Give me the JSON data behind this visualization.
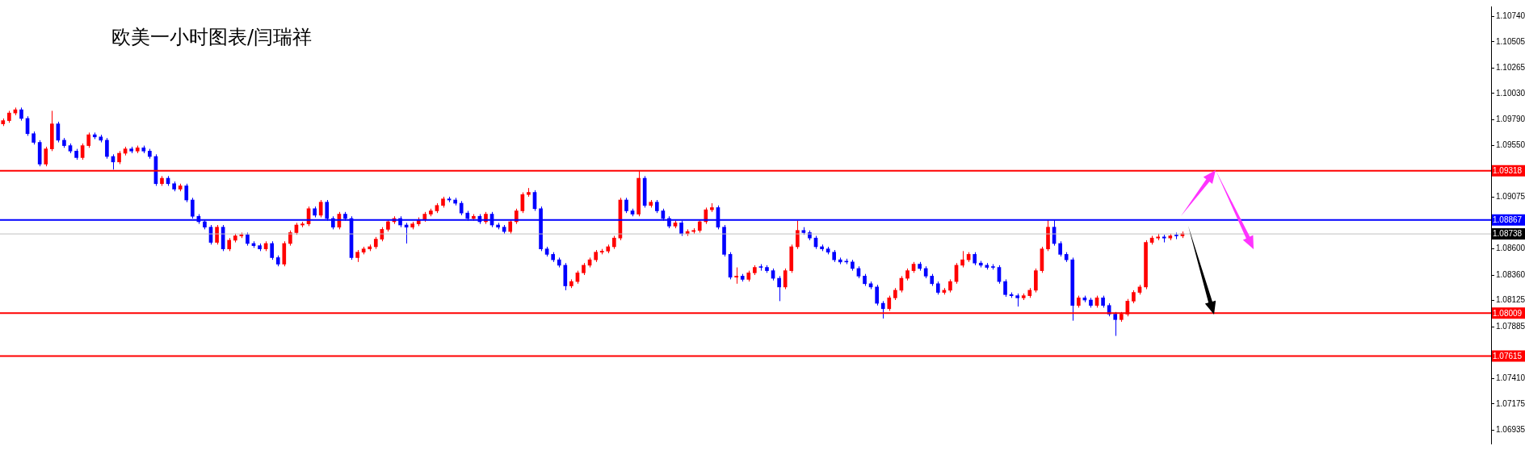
{
  "chart_data": {
    "type": "candlestick",
    "title": "欧美一小时图表/闫瑞祥",
    "categories": [
      null,
      null,
      null,
      null,
      null,
      null,
      null,
      null,
      null,
      null,
      null,
      null,
      null,
      null,
      null,
      null,
      null,
      null,
      null,
      null,
      null,
      null,
      null,
      null,
      null,
      null,
      null,
      null,
      null,
      null,
      null,
      null,
      null,
      null,
      null,
      null,
      null,
      null,
      null,
      null,
      null,
      null,
      null,
      null,
      null,
      null,
      null,
      null,
      null,
      null,
      null,
      null,
      null,
      null,
      null,
      null,
      null,
      null,
      null,
      null,
      null,
      null,
      null,
      null,
      null,
      null,
      null,
      null,
      null,
      null,
      null,
      null,
      null,
      null,
      null,
      null,
      null,
      null,
      null,
      null,
      null,
      null,
      null,
      null,
      null,
      null,
      null,
      null,
      null,
      null,
      null,
      null,
      null,
      null,
      null,
      null,
      null,
      null,
      null,
      null,
      null,
      null,
      null,
      null,
      null,
      null,
      null,
      null,
      null,
      null,
      null,
      null,
      null,
      null,
      null,
      null,
      null,
      null,
      null,
      null,
      null,
      null,
      null,
      null,
      null,
      null,
      null,
      null,
      null,
      null,
      null,
      null,
      null,
      null,
      null,
      null,
      null,
      null,
      null,
      null,
      null,
      null,
      null,
      null,
      null,
      null,
      null,
      null,
      null,
      null,
      null,
      null,
      null,
      null,
      null,
      null,
      null,
      null,
      null,
      null,
      null,
      null,
      null,
      null,
      null,
      null,
      null,
      null,
      null,
      null,
      null,
      null,
      null,
      null,
      null,
      null,
      null,
      null,
      null,
      null,
      null,
      null,
      null,
      null,
      null,
      null,
      null,
      null,
      null,
      null,
      null,
      null,
      null,
      null,
      null,
      null,
      null,
      null,
      null,
      null,
      null,
      null,
      null,
      null,
      null,
      null,
      null,
      null,
      null,
      null,
      null,
      null,
      null,
      null,
      null,
      null,
      null,
      null,
      null,
      null,
      null,
      null,
      null,
      null,
      null,
      null,
      null,
      null,
      null,
      null,
      null,
      null,
      null,
      null,
      null,
      null,
      null,
      null,
      null,
      null,
      null,
      null,
      null,
      null
    ],
    "ohlc": [
      [
        1.0975,
        1.098,
        1.0973,
        1.0978
      ],
      [
        1.0978,
        1.0987,
        1.0976,
        1.0985
      ],
      [
        1.0985,
        1.099,
        1.0983,
        1.0988
      ],
      [
        1.0988,
        1.099,
        1.0978,
        1.098
      ],
      [
        1.098,
        1.0982,
        1.0964,
        1.0966
      ],
      [
        1.0966,
        1.0968,
        1.0956,
        1.0958
      ],
      [
        1.0958,
        1.096,
        1.0936,
        1.0938
      ],
      [
        1.0938,
        1.0954,
        1.0936,
        1.0952
      ],
      [
        1.0952,
        1.0987,
        1.095,
        1.0975
      ],
      [
        1.0975,
        1.0977,
        1.0958,
        1.096
      ],
      [
        1.096,
        1.0962,
        1.0953,
        1.0955
      ],
      [
        1.0955,
        1.0957,
        1.0948,
        1.095
      ],
      [
        1.095,
        1.0952,
        1.0942,
        1.0944
      ],
      [
        1.0944,
        1.0957,
        1.0942,
        1.0955
      ],
      [
        1.0955,
        1.0967,
        1.0953,
        1.0965
      ],
      [
        1.0965,
        1.0967,
        1.0961,
        1.0963
      ],
      [
        1.0963,
        1.0965,
        1.0958,
        1.096
      ],
      [
        1.096,
        1.0962,
        1.0943,
        1.0945
      ],
      [
        1.0945,
        1.0947,
        1.0933,
        1.094
      ],
      [
        1.094,
        1.095,
        1.0938,
        1.0948
      ],
      [
        1.0948,
        1.0954,
        1.0946,
        1.0952
      ],
      [
        1.0952,
        1.0954,
        1.0948,
        1.095
      ],
      [
        1.095,
        1.0955,
        1.0948,
        1.0953
      ],
      [
        1.0953,
        1.0955,
        1.0948,
        1.095
      ],
      [
        1.095,
        1.0952,
        1.0943,
        1.0945
      ],
      [
        1.0945,
        1.0947,
        1.0918,
        1.092
      ],
      [
        1.092,
        1.0927,
        1.0918,
        1.0925
      ],
      [
        1.0925,
        1.0927,
        1.0918,
        1.092
      ],
      [
        1.092,
        1.0922,
        1.0913,
        1.0915
      ],
      [
        1.0915,
        1.092,
        1.0913,
        1.0918
      ],
      [
        1.0918,
        1.092,
        1.0903,
        1.0905
      ],
      [
        1.0905,
        1.0907,
        1.0888,
        1.089
      ],
      [
        1.089,
        1.0892,
        1.0883,
        1.0885
      ],
      [
        1.0885,
        1.0887,
        1.0878,
        1.088
      ],
      [
        1.088,
        1.0882,
        1.0864,
        1.0866
      ],
      [
        1.0866,
        1.0882,
        1.0864,
        1.088
      ],
      [
        1.088,
        1.0882,
        1.0858,
        1.086
      ],
      [
        1.086,
        1.087,
        1.0858,
        1.0868
      ],
      [
        1.0868,
        1.0874,
        1.0866,
        1.0872
      ],
      [
        1.0872,
        1.0875,
        1.087,
        1.0873
      ],
      [
        1.0873,
        1.0875,
        1.0863,
        1.0865
      ],
      [
        1.0865,
        1.0867,
        1.0861,
        1.0863
      ],
      [
        1.0863,
        1.0865,
        1.0858,
        1.086
      ],
      [
        1.086,
        1.0867,
        1.0858,
        1.0865
      ],
      [
        1.0865,
        1.0867,
        1.085,
        1.0852
      ],
      [
        1.0852,
        1.0854,
        1.0844,
        1.0846
      ],
      [
        1.0846,
        1.0867,
        1.0844,
        1.0865
      ],
      [
        1.0865,
        1.0877,
        1.0863,
        1.0875
      ],
      [
        1.0875,
        1.0884,
        1.0873,
        1.0882
      ],
      [
        1.0882,
        1.0885,
        1.088,
        1.0883
      ],
      [
        1.0883,
        1.0899,
        1.0881,
        1.0897
      ],
      [
        1.0897,
        1.0899,
        1.0889,
        1.0891
      ],
      [
        1.0891,
        1.0905,
        1.0889,
        1.0903
      ],
      [
        1.0903,
        1.0905,
        1.0886,
        1.0888
      ],
      [
        1.0888,
        1.089,
        1.0878,
        1.088
      ],
      [
        1.088,
        1.0894,
        1.0878,
        1.0892
      ],
      [
        1.0892,
        1.0894,
        1.0886,
        1.0888
      ],
      [
        1.0888,
        1.089,
        1.085,
        1.0852
      ],
      [
        1.0852,
        1.0859,
        1.0848,
        1.0857
      ],
      [
        1.0857,
        1.0862,
        1.0855,
        1.086
      ],
      [
        1.086,
        1.0864,
        1.0858,
        1.0862
      ],
      [
        1.0862,
        1.0871,
        1.086,
        1.0869
      ],
      [
        1.0869,
        1.088,
        1.0867,
        1.0878
      ],
      [
        1.0878,
        1.0887,
        1.0876,
        1.0885
      ],
      [
        1.0885,
        1.089,
        1.0883,
        1.0888
      ],
      [
        1.0888,
        1.089,
        1.088,
        1.0882
      ],
      [
        1.0882,
        1.0884,
        1.0865,
        1.088
      ],
      [
        1.088,
        1.0885,
        1.0878,
        1.0883
      ],
      [
        1.0883,
        1.0889,
        1.0881,
        1.0887
      ],
      [
        1.0887,
        1.0894,
        1.0885,
        1.0892
      ],
      [
        1.0892,
        1.0897,
        1.089,
        1.0895
      ],
      [
        1.0895,
        1.0902,
        1.0893,
        1.09
      ],
      [
        1.09,
        1.0908,
        1.0898,
        1.0906
      ],
      [
        1.0906,
        1.0908,
        1.0903,
        1.0905
      ],
      [
        1.0905,
        1.0907,
        1.09,
        1.0902
      ],
      [
        1.0902,
        1.0904,
        1.0891,
        1.0893
      ],
      [
        1.0893,
        1.0895,
        1.0886,
        1.0888
      ],
      [
        1.0888,
        1.0892,
        1.0886,
        1.089
      ],
      [
        1.089,
        1.0892,
        1.0883,
        1.0885
      ],
      [
        1.0885,
        1.0894,
        1.0883,
        1.0892
      ],
      [
        1.0892,
        1.0894,
        1.088,
        1.0882
      ],
      [
        1.0882,
        1.0884,
        1.0878,
        1.088
      ],
      [
        1.088,
        1.0882,
        1.0874,
        1.0876
      ],
      [
        1.0876,
        1.0887,
        1.0874,
        1.0885
      ],
      [
        1.0885,
        1.0897,
        1.0883,
        1.0895
      ],
      [
        1.0895,
        1.0912,
        1.0893,
        1.091
      ],
      [
        1.091,
        1.0916,
        1.0908,
        1.0912
      ],
      [
        1.0912,
        1.0914,
        1.0895,
        1.0897
      ],
      [
        1.0897,
        1.0899,
        1.0858,
        1.086
      ],
      [
        1.086,
        1.0862,
        1.0853,
        1.0855
      ],
      [
        1.0855,
        1.0857,
        1.0848,
        1.085
      ],
      [
        1.085,
        1.0852,
        1.0843,
        1.0845
      ],
      [
        1.0845,
        1.0847,
        1.0822,
        1.0826
      ],
      [
        1.0826,
        1.0832,
        1.0824,
        1.083
      ],
      [
        1.083,
        1.084,
        1.0828,
        1.0838
      ],
      [
        1.0838,
        1.0847,
        1.0836,
        1.0845
      ],
      [
        1.0845,
        1.0852,
        1.0843,
        1.085
      ],
      [
        1.085,
        1.0859,
        1.0848,
        1.0857
      ],
      [
        1.0857,
        1.086,
        1.0855,
        1.0858
      ],
      [
        1.0858,
        1.0864,
        1.0856,
        1.0862
      ],
      [
        1.0862,
        1.0872,
        1.086,
        1.087
      ],
      [
        1.087,
        1.0907,
        1.0868,
        1.0905
      ],
      [
        1.0905,
        1.0907,
        1.0893,
        1.0895
      ],
      [
        1.0895,
        1.0897,
        1.089,
        1.0892
      ],
      [
        1.0892,
        1.0932,
        1.089,
        1.0925
      ],
      [
        1.0925,
        1.0927,
        1.0898,
        1.09
      ],
      [
        1.09,
        1.0905,
        1.0898,
        1.0903
      ],
      [
        1.0903,
        1.0905,
        1.0893,
        1.0895
      ],
      [
        1.0895,
        1.0897,
        1.0886,
        1.0888
      ],
      [
        1.0888,
        1.089,
        1.0879,
        1.0881
      ],
      [
        1.0881,
        1.0886,
        1.0879,
        1.0884
      ],
      [
        1.0884,
        1.0886,
        1.0872,
        1.0874
      ],
      [
        1.0874,
        1.0878,
        1.0872,
        1.0876
      ],
      [
        1.0876,
        1.0879,
        1.0874,
        1.0877
      ],
      [
        1.0877,
        1.0887,
        1.0875,
        1.0885
      ],
      [
        1.0885,
        1.0898,
        1.0883,
        1.0896
      ],
      [
        1.0896,
        1.0902,
        1.0894,
        1.0898
      ],
      [
        1.0898,
        1.09,
        1.0878,
        1.088
      ],
      [
        1.088,
        1.0882,
        1.0853,
        1.0855
      ],
      [
        1.0855,
        1.0857,
        1.0832,
        1.0834
      ],
      [
        1.0834,
        1.0843,
        1.0828,
        1.0835
      ],
      [
        1.0835,
        1.0837,
        1.083,
        1.0832
      ],
      [
        1.0832,
        1.084,
        1.083,
        1.0838
      ],
      [
        1.0838,
        1.0845,
        1.0836,
        1.0843
      ],
      [
        1.0843,
        1.0846,
        1.084,
        1.0843
      ],
      [
        1.0843,
        1.0845,
        1.0838,
        1.084
      ],
      [
        1.084,
        1.0842,
        1.0831,
        1.0833
      ],
      [
        1.0833,
        1.0835,
        1.0812,
        1.0825
      ],
      [
        1.0825,
        1.0842,
        1.0823,
        1.084
      ],
      [
        1.084,
        1.0864,
        1.0838,
        1.0862
      ],
      [
        1.0862,
        1.0886,
        1.086,
        1.0877
      ],
      [
        1.0877,
        1.088,
        1.0873,
        1.0875
      ],
      [
        1.0875,
        1.0877,
        1.0868,
        1.087
      ],
      [
        1.087,
        1.0872,
        1.086,
        1.0862
      ],
      [
        1.0862,
        1.0864,
        1.0858,
        1.086
      ],
      [
        1.086,
        1.0862,
        1.0855,
        1.0857
      ],
      [
        1.0857,
        1.0859,
        1.0848,
        1.085
      ],
      [
        1.085,
        1.0852,
        1.0846,
        1.0848
      ],
      [
        1.0848,
        1.0851,
        1.0846,
        1.0848
      ],
      [
        1.0848,
        1.085,
        1.084,
        1.0842
      ],
      [
        1.0842,
        1.0844,
        1.0833,
        1.0835
      ],
      [
        1.0835,
        1.0837,
        1.0826,
        1.0828
      ],
      [
        1.0828,
        1.083,
        1.0823,
        1.0825
      ],
      [
        1.0825,
        1.0827,
        1.0808,
        1.081
      ],
      [
        1.081,
        1.0812,
        1.0796,
        1.0805
      ],
      [
        1.0805,
        1.0817,
        1.0803,
        1.0815
      ],
      [
        1.0815,
        1.0824,
        1.0813,
        1.0822
      ],
      [
        1.0822,
        1.0835,
        1.082,
        1.0833
      ],
      [
        1.0833,
        1.0842,
        1.0831,
        1.084
      ],
      [
        1.084,
        1.0848,
        1.0838,
        1.0846
      ],
      [
        1.0846,
        1.0848,
        1.084,
        1.0842
      ],
      [
        1.0842,
        1.0844,
        1.0833,
        1.0835
      ],
      [
        1.0835,
        1.0837,
        1.0826,
        1.0828
      ],
      [
        1.0828,
        1.083,
        1.0818,
        1.082
      ],
      [
        1.082,
        1.0824,
        1.0818,
        1.0822
      ],
      [
        1.0822,
        1.0832,
        1.082,
        1.083
      ],
      [
        1.083,
        1.0847,
        1.0828,
        1.0845
      ],
      [
        1.0845,
        1.0858,
        1.0843,
        1.085
      ],
      [
        1.085,
        1.0857,
        1.0848,
        1.0855
      ],
      [
        1.0855,
        1.0857,
        1.0845,
        1.0847
      ],
      [
        1.0847,
        1.0849,
        1.0843,
        1.0845
      ],
      [
        1.0845,
        1.0847,
        1.0841,
        1.0843
      ],
      [
        1.0843,
        1.0846,
        1.0841,
        1.0843
      ],
      [
        1.0843,
        1.0845,
        1.0828,
        1.083
      ],
      [
        1.083,
        1.0832,
        1.0816,
        1.0818
      ],
      [
        1.0818,
        1.082,
        1.0815,
        1.0817
      ],
      [
        1.0817,
        1.0819,
        1.0807,
        1.0815
      ],
      [
        1.0815,
        1.0819,
        1.0813,
        1.0817
      ],
      [
        1.0817,
        1.0824,
        1.0815,
        1.0822
      ],
      [
        1.0822,
        1.0842,
        1.082,
        1.084
      ],
      [
        1.084,
        1.0862,
        1.0838,
        1.086
      ],
      [
        1.086,
        1.0887,
        1.0858,
        1.088
      ],
      [
        1.088,
        1.0887,
        1.0863,
        1.0865
      ],
      [
        1.0865,
        1.0867,
        1.0853,
        1.0855
      ],
      [
        1.0855,
        1.0857,
        1.0848,
        1.085
      ],
      [
        1.085,
        1.0852,
        1.0794,
        1.0808
      ],
      [
        1.0808,
        1.0817,
        1.0806,
        1.0815
      ],
      [
        1.0815,
        1.0817,
        1.0811,
        1.0813
      ],
      [
        1.0813,
        1.0815,
        1.0806,
        1.0808
      ],
      [
        1.0808,
        1.0817,
        1.0806,
        1.0815
      ],
      [
        1.0815,
        1.0817,
        1.0806,
        1.0808
      ],
      [
        1.0808,
        1.081,
        1.0798,
        1.08
      ],
      [
        1.08,
        1.0802,
        1.078,
        1.0795
      ],
      [
        1.0795,
        1.0802,
        1.0793,
        1.08
      ],
      [
        1.08,
        1.0814,
        1.0798,
        1.0812
      ],
      [
        1.0812,
        1.0822,
        1.081,
        1.082
      ],
      [
        1.082,
        1.0827,
        1.0818,
        1.0825
      ],
      [
        1.0825,
        1.0868,
        1.0823,
        1.0866
      ],
      [
        1.0866,
        1.0872,
        1.0864,
        1.087
      ],
      [
        1.087,
        1.0874,
        1.0868,
        1.0871
      ],
      [
        1.0871,
        1.0873,
        1.0866,
        1.087
      ],
      [
        1.087,
        1.0874,
        1.0868,
        1.0872
      ],
      [
        1.0872,
        1.0875,
        1.0869,
        1.0872
      ],
      [
        1.0872,
        1.0876,
        1.087,
        1.0874
      ],
      null,
      null,
      null,
      null,
      null,
      null,
      null,
      null,
      null,
      null,
      null,
      null,
      null,
      null,
      null,
      null,
      null,
      null,
      null,
      null,
      null,
      null,
      null,
      null,
      null,
      null,
      null,
      null,
      null,
      null,
      null,
      null,
      null,
      null,
      null,
      null,
      null,
      null,
      null,
      null,
      null,
      null,
      null,
      null,
      null,
      null,
      null,
      null,
      null,
      null
    ],
    "colors": [
      "#ff0000",
      "#ff0000",
      "#ff0000",
      "#0000ff",
      "#0000ff",
      "#0000ff",
      "#0000ff",
      "#ff0000",
      "#ff0000",
      "#0000ff",
      "#0000ff",
      "#0000ff",
      "#0000ff",
      "#ff0000",
      "#ff0000",
      "#0000ff",
      "#0000ff",
      "#0000ff",
      "#0000ff",
      "#ff0000",
      "#ff0000",
      "#0000ff",
      "#ff0000",
      "#0000ff",
      "#0000ff",
      "#0000ff",
      "#ff0000",
      "#0000ff",
      "#0000ff",
      "#ff0000",
      "#0000ff",
      "#0000ff",
      "#0000ff",
      "#0000ff",
      "#0000ff",
      "#ff0000",
      "#0000ff",
      "#ff0000",
      "#ff0000",
      "#ff0000",
      "#0000ff",
      "#0000ff",
      "#0000ff",
      "#ff0000",
      "#0000ff",
      "#0000ff",
      "#ff0000",
      "#ff0000",
      "#ff0000",
      "#ff0000",
      "#ff0000",
      "#0000ff",
      "#ff0000",
      "#0000ff",
      "#0000ff",
      "#ff0000",
      "#0000ff",
      "#0000ff",
      "#ff0000",
      "#ff0000",
      "#ff0000",
      "#ff0000",
      "#ff0000",
      "#ff0000",
      "#ff0000",
      "#0000ff",
      "#0000ff",
      "#ff0000",
      "#ff0000",
      "#ff0000",
      "#ff0000",
      "#ff0000",
      "#ff0000",
      "#0000ff",
      "#0000ff",
      "#0000ff",
      "#0000ff",
      "#ff0000",
      "#0000ff",
      "#ff0000",
      "#0000ff",
      "#0000ff",
      "#0000ff",
      "#ff0000",
      "#ff0000",
      "#ff0000",
      "#ff0000",
      "#0000ff",
      "#0000ff",
      "#0000ff",
      "#0000ff",
      "#0000ff",
      "#0000ff",
      "#ff0000",
      "#ff0000",
      "#ff0000",
      "#ff0000",
      "#ff0000",
      "#ff0000",
      "#ff0000",
      "#ff0000",
      "#ff0000",
      "#0000ff",
      "#0000ff",
      "#ff0000",
      "#0000ff",
      "#ff0000",
      "#0000ff",
      "#0000ff",
      "#0000ff",
      "#ff0000",
      "#0000ff",
      "#ff0000",
      "#ff0000",
      "#ff0000",
      "#ff0000",
      "#ff0000",
      "#0000ff",
      "#0000ff",
      "#0000ff",
      "#ff0000",
      "#0000ff",
      "#ff0000",
      "#ff0000",
      "#0000ff",
      "#0000ff",
      "#0000ff",
      "#0000ff",
      "#ff0000",
      "#ff0000",
      "#ff0000",
      "#0000ff",
      "#0000ff",
      "#0000ff",
      "#0000ff",
      "#0000ff",
      "#0000ff",
      "#0000ff",
      "#0000ff",
      "#0000ff",
      "#0000ff",
      "#0000ff",
      "#0000ff",
      "#0000ff",
      "#0000ff",
      "#ff0000",
      "#ff0000",
      "#ff0000",
      "#ff0000",
      "#ff0000",
      "#0000ff",
      "#0000ff",
      "#0000ff",
      "#0000ff",
      "#ff0000",
      "#ff0000",
      "#ff0000",
      "#ff0000",
      "#ff0000",
      "#0000ff",
      "#0000ff",
      "#0000ff",
      "#0000ff",
      "#0000ff",
      "#0000ff",
      "#0000ff",
      "#0000ff",
      "#ff0000",
      "#ff0000",
      "#ff0000",
      "#ff0000",
      "#ff0000",
      "#0000ff",
      "#0000ff",
      "#0000ff",
      "#0000ff",
      "#ff0000",
      "#0000ff",
      "#0000ff",
      "#ff0000",
      "#0000ff",
      "#0000ff",
      "#0000ff",
      "#ff0000",
      "#ff0000",
      "#ff0000",
      "#ff0000",
      "#ff0000",
      "#ff0000",
      "#ff0000",
      "#0000ff",
      "#ff0000",
      "#0000ff",
      "#ff0000",
      null,
      null,
      null,
      null,
      null,
      null,
      null,
      null,
      null,
      null,
      null,
      null,
      null,
      null,
      null,
      null,
      null,
      null,
      null,
      null,
      null,
      null,
      null,
      null,
      null,
      null,
      null,
      null,
      null,
      null,
      null,
      null,
      null,
      null,
      null,
      null,
      null,
      null,
      null,
      null,
      null,
      null,
      null,
      null,
      null,
      null,
      null,
      null,
      null,
      null
    ],
    "ylim": [
      1.0681,
      1.1083
    ],
    "yticks": [
      {
        "value": 1.1074,
        "label": "1.10740"
      },
      {
        "value": 1.10505,
        "label": "1.10505"
      },
      {
        "value": 1.10265,
        "label": "1.10265"
      },
      {
        "value": 1.1003,
        "label": "1.10030"
      },
      {
        "value": 1.0979,
        "label": "1.09790"
      },
      {
        "value": 1.0955,
        "label": "1.09550"
      },
      {
        "value": 1.09075,
        "label": "1.09075"
      },
      {
        "value": 1.086,
        "label": "1.08600"
      },
      {
        "value": 1.0836,
        "label": "1.08360"
      },
      {
        "value": 1.08125,
        "label": "1.08125"
      },
      {
        "value": 1.07885,
        "label": "1.07885"
      },
      {
        "value": 1.0741,
        "label": "1.07410"
      },
      {
        "value": 1.07175,
        "label": "1.07175"
      },
      {
        "value": 1.06935,
        "label": "1.06935"
      }
    ],
    "ref_lines": [
      {
        "axis": "y",
        "value": 1.09318,
        "label": "1.09318",
        "color": "#ff0000"
      },
      {
        "axis": "y",
        "value": 1.08867,
        "label": "1.08867",
        "color": "#0000ff"
      },
      {
        "axis": "y",
        "value": 1.08738,
        "label": "1.08738",
        "color": "#c0c0c0"
      },
      {
        "axis": "y",
        "value": 1.08009,
        "label": "1.08009",
        "color": "#ff0000"
      },
      {
        "axis": "y",
        "value": 1.07615,
        "label": "1.07615",
        "color": "#ff0000"
      }
    ]
  }
}
